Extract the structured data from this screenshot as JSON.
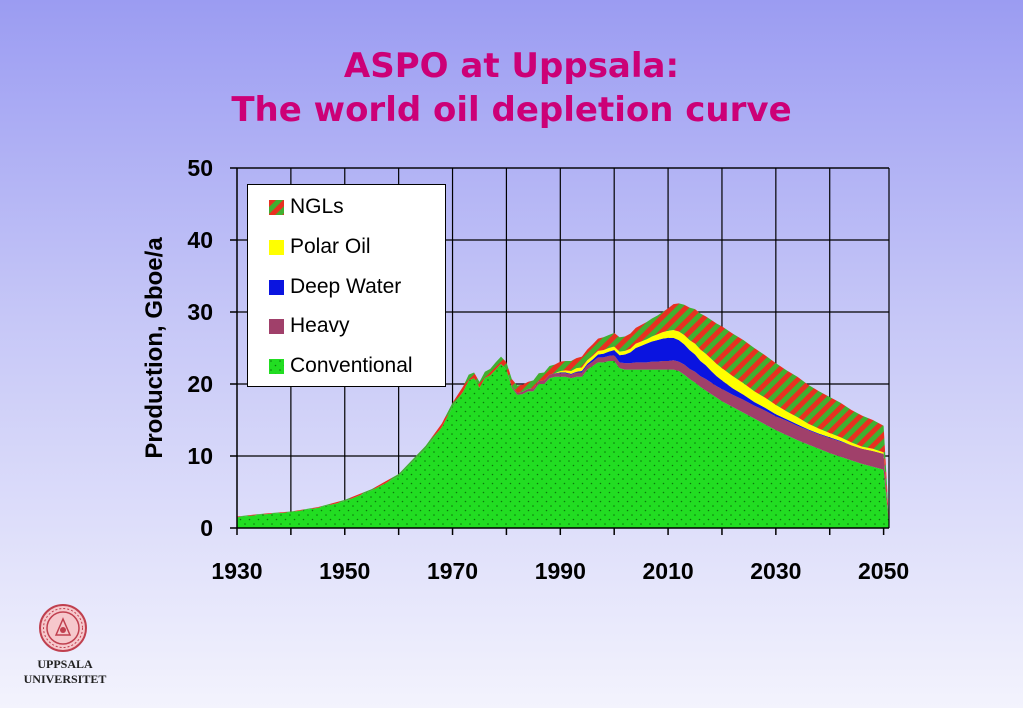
{
  "title": {
    "line1": "ASPO at Uppsala:",
    "line2": "The world oil depletion curve"
  },
  "logo": {
    "line1": "UPPSALA",
    "line2": "UNIVERSITET",
    "icon": "university-seal-icon"
  },
  "colors": {
    "conventional": "#22dd22",
    "heavy": "#a0406a",
    "deep_water": "#0a14e0",
    "polar_oil": "#ffff00",
    "ngl_red": "#e83020",
    "ngl_green": "#40b030",
    "title": "#cc0077"
  },
  "chart_data": {
    "type": "area",
    "stacked": true,
    "title": "",
    "xlabel": "",
    "ylabel": "Production, Gboe/a",
    "xlim": [
      1930,
      2051
    ],
    "ylim": [
      0,
      50
    ],
    "x_ticks": [
      1930,
      1950,
      1970,
      1990,
      2010,
      2030,
      2050
    ],
    "y_ticks": [
      0,
      10,
      20,
      30,
      40,
      50
    ],
    "grid": true,
    "legend_position": "top-left",
    "legend": [
      "NGLs",
      "Polar Oil",
      "Deep Water",
      "Heavy",
      "Conventional"
    ],
    "x": [
      1930,
      1935,
      1940,
      1945,
      1950,
      1955,
      1960,
      1965,
      1968,
      1970,
      1972,
      1973,
      1974,
      1975,
      1976,
      1977,
      1978,
      1979,
      1980,
      1981,
      1982,
      1983,
      1984,
      1985,
      1986,
      1987,
      1988,
      1989,
      1990,
      1991,
      1992,
      1993,
      1994,
      1995,
      1996,
      1997,
      1998,
      1999,
      2000,
      2001,
      2002,
      2003,
      2004,
      2005,
      2006,
      2007,
      2008,
      2009,
      2010,
      2011,
      2012,
      2013,
      2014,
      2015,
      2016,
      2017,
      2018,
      2019,
      2020,
      2022,
      2024,
      2026,
      2028,
      2030,
      2032,
      2034,
      2036,
      2038,
      2040,
      2042,
      2044,
      2046,
      2048,
      2050,
      2051
    ],
    "series": [
      {
        "name": "Conventional",
        "values": [
          1.5,
          1.9,
          2.2,
          2.8,
          3.7,
          5.2,
          7.2,
          11,
          14,
          16.8,
          19,
          20.5,
          20.8,
          19.5,
          20.8,
          21.2,
          22,
          22.8,
          22,
          19.5,
          18.5,
          18.6,
          19,
          19,
          20,
          20,
          20.8,
          21,
          21,
          21,
          20.8,
          21,
          21,
          22,
          22.5,
          23,
          23,
          23.2,
          23.2,
          22.2,
          22,
          22,
          22,
          22,
          22,
          22,
          22,
          22,
          22,
          22,
          21.8,
          21.3,
          20.7,
          20.2,
          19.6,
          19.1,
          18.6,
          18.1,
          17.6,
          16.8,
          16,
          15.2,
          14.4,
          13.6,
          12.9,
          12.2,
          11.6,
          11,
          10.4,
          9.9,
          9.4,
          8.9,
          8.5,
          8.1,
          0.5
        ]
      },
      {
        "name": "Heavy",
        "values": [
          0,
          0,
          0,
          0,
          0,
          0,
          0,
          0,
          0,
          0,
          0,
          0,
          0,
          0,
          0,
          0,
          0,
          0,
          0,
          0.2,
          0.3,
          0.3,
          0.3,
          0.4,
          0.4,
          0.5,
          0.5,
          0.5,
          0.5,
          0.5,
          0.5,
          0.6,
          0.6,
          0.6,
          0.6,
          0.7,
          0.7,
          0.7,
          0.8,
          0.8,
          0.9,
          0.9,
          1,
          1,
          1,
          1.1,
          1.1,
          1.2,
          1.2,
          1.3,
          1.3,
          1.4,
          1.4,
          1.5,
          1.5,
          1.6,
          1.6,
          1.6,
          1.7,
          1.7,
          1.8,
          1.8,
          1.9,
          1.9,
          2,
          2,
          2,
          2,
          2.1,
          2.1,
          2.1,
          2.1,
          2.2,
          2.2,
          0.2
        ]
      },
      {
        "name": "Deep Water",
        "values": [
          0,
          0,
          0,
          0,
          0,
          0,
          0,
          0,
          0,
          0,
          0,
          0,
          0,
          0,
          0,
          0,
          0,
          0,
          0,
          0,
          0,
          0,
          0,
          0,
          0,
          0,
          0,
          0,
          0.1,
          0.1,
          0.1,
          0.1,
          0.2,
          0.2,
          0.3,
          0.4,
          0.5,
          0.6,
          0.7,
          1,
          1.2,
          1.5,
          2,
          2.3,
          2.6,
          2.8,
          3,
          3.1,
          3.2,
          3.1,
          3,
          2.8,
          2.6,
          2.4,
          2.1,
          1.9,
          1.6,
          1.4,
          1.2,
          0.9,
          0.7,
          0.5,
          0.4,
          0.3,
          0.2,
          0.2,
          0.1,
          0.1,
          0.1,
          0.1,
          0,
          0,
          0,
          0,
          0
        ]
      },
      {
        "name": "Polar Oil",
        "values": [
          0,
          0,
          0,
          0,
          0,
          0,
          0,
          0,
          0,
          0,
          0,
          0,
          0,
          0,
          0,
          0,
          0,
          0,
          0,
          0,
          0,
          0,
          0,
          0,
          0,
          0,
          0,
          0,
          0.2,
          0.3,
          0.4,
          0.5,
          0.5,
          0.5,
          0.5,
          0.5,
          0.5,
          0.5,
          0.5,
          0.5,
          0.5,
          0.5,
          0.6,
          0.6,
          0.6,
          0.7,
          0.8,
          0.9,
          1,
          1.1,
          1.2,
          1.3,
          1.4,
          1.5,
          1.6,
          1.6,
          1.7,
          1.7,
          1.7,
          1.7,
          1.6,
          1.5,
          1.4,
          1.3,
          1.1,
          1,
          0.8,
          0.7,
          0.6,
          0.5,
          0.4,
          0.3,
          0.3,
          0.2,
          0
        ]
      },
      {
        "name": "NGLs",
        "values": [
          0.1,
          0.1,
          0.1,
          0.1,
          0.2,
          0.2,
          0.3,
          0.4,
          0.5,
          0.6,
          0.7,
          0.8,
          0.8,
          0.8,
          0.9,
          0.9,
          1,
          1,
          1,
          1,
          1,
          1,
          1,
          1.1,
          1.1,
          1.1,
          1.2,
          1.2,
          1.3,
          1.3,
          1.4,
          1.4,
          1.5,
          1.5,
          1.6,
          1.7,
          1.8,
          1.8,
          1.9,
          2,
          2,
          2.1,
          2.2,
          2.3,
          2.4,
          2.5,
          2.6,
          2.8,
          3.1,
          3.6,
          3.9,
          4.2,
          4.5,
          4.8,
          5,
          5.2,
          5.4,
          5.6,
          5.8,
          5.9,
          6,
          6,
          5.9,
          5.8,
          5.7,
          5.6,
          5.4,
          5.2,
          5,
          4.8,
          4.5,
          4.3,
          4,
          3.7,
          0.3
        ]
      }
    ]
  }
}
